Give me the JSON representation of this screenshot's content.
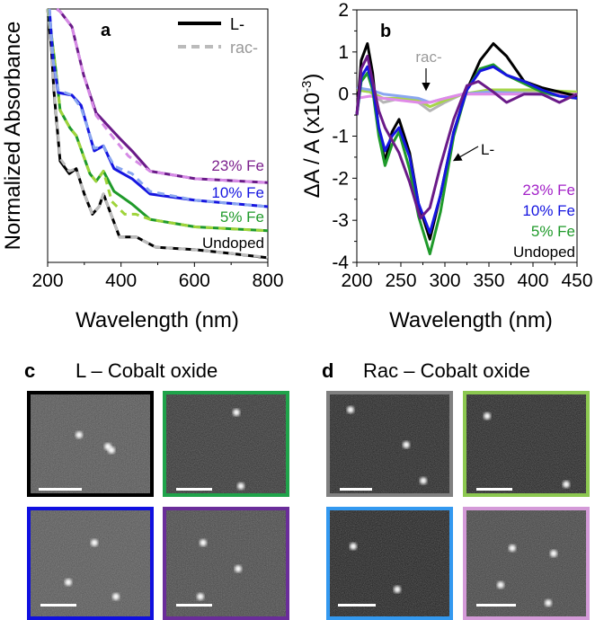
{
  "chart_data": [
    {
      "panel": "a",
      "type": "line",
      "xlabel": "Wavelength (nm)",
      "ylabel": "Normalized Absorbance",
      "xlim": [
        200,
        800
      ],
      "ylim": [
        0,
        1
      ],
      "xticks": [
        "200",
        "400",
        "600",
        "800"
      ],
      "yticks": [],
      "grid": false,
      "legend": {
        "placement": "top-right",
        "entries": [
          {
            "label": "L-",
            "style": "solid",
            "color": "#000000"
          },
          {
            "label": "rac-",
            "style": "dashed",
            "color": "#bbbbbb"
          }
        ]
      },
      "series_labels": [
        {
          "text": "23% Fe",
          "color": "#7b1f8c"
        },
        {
          "text": "10% Fe",
          "color": "#1515e0"
        },
        {
          "text": "5% Fe",
          "color": "#1f9a2a"
        },
        {
          "text": "Undoped",
          "color": "#000000"
        }
      ],
      "series": [
        {
          "group": "Undoped",
          "kind": "L-",
          "style": "solid",
          "color": "#000000",
          "x": [
            200,
            210,
            217,
            234,
            259,
            278,
            300,
            322,
            340,
            352,
            370,
            396,
            420,
            442,
            494,
            602,
            700,
            800
          ],
          "y": [
            1.0,
            0.85,
            0.68,
            0.4,
            0.35,
            0.37,
            0.27,
            0.19,
            0.22,
            0.27,
            0.2,
            0.1,
            0.1,
            0.1,
            0.06,
            0.05,
            0.035,
            0.018
          ]
        },
        {
          "group": "Undoped",
          "kind": "rac-",
          "style": "dashed",
          "color": "#bdbdbd",
          "x": [
            200,
            210,
            217,
            234,
            259,
            278,
            300,
            322,
            340,
            352,
            370,
            396,
            420,
            442,
            494,
            602,
            700,
            800
          ],
          "y": [
            1.0,
            0.86,
            0.69,
            0.41,
            0.36,
            0.37,
            0.27,
            0.19,
            0.22,
            0.27,
            0.2,
            0.1,
            0.1,
            0.1,
            0.06,
            0.05,
            0.035,
            0.02
          ]
        },
        {
          "group": "5% Fe",
          "kind": "L-",
          "style": "solid",
          "color": "#1f9a2a",
          "x": [
            203,
            210,
            222,
            234,
            261,
            278,
            315,
            332,
            352,
            381,
            430,
            479,
            602,
            800
          ],
          "y": [
            1.0,
            0.9,
            0.76,
            0.6,
            0.53,
            0.5,
            0.35,
            0.32,
            0.36,
            0.28,
            0.23,
            0.17,
            0.14,
            0.125
          ]
        },
        {
          "group": "5% Fe",
          "kind": "rac-",
          "style": "dashed",
          "color": "#9fd43a",
          "x": [
            203,
            210,
            222,
            234,
            261,
            278,
            315,
            332,
            352,
            375,
            410,
            440,
            479,
            602,
            800
          ],
          "y": [
            1.0,
            0.9,
            0.76,
            0.6,
            0.53,
            0.5,
            0.35,
            0.32,
            0.36,
            0.24,
            0.19,
            0.19,
            0.17,
            0.14,
            0.125
          ]
        },
        {
          "group": "10% Fe",
          "kind": "L-",
          "style": "solid",
          "color": "#1515e0",
          "x": [
            205,
            215,
            229,
            266,
            291,
            327,
            352,
            381,
            430,
            479,
            602,
            800
          ],
          "y": [
            1.0,
            0.8,
            0.67,
            0.66,
            0.62,
            0.44,
            0.46,
            0.37,
            0.33,
            0.27,
            0.245,
            0.22
          ]
        },
        {
          "group": "10% Fe",
          "kind": "rac-",
          "style": "dashed",
          "color": "#8aa6f0",
          "x": [
            205,
            215,
            229,
            266,
            291,
            327,
            352,
            381,
            430,
            479,
            602,
            800
          ],
          "y": [
            1.0,
            0.8,
            0.68,
            0.66,
            0.61,
            0.45,
            0.46,
            0.38,
            0.35,
            0.28,
            0.245,
            0.22
          ]
        },
        {
          "group": "23% Fe",
          "kind": "L-",
          "style": "solid",
          "color": "#6a1a88",
          "x": [
            225,
            234,
            266,
            298,
            332,
            396,
            430,
            479,
            602,
            800
          ],
          "y": [
            1.0,
            0.99,
            0.93,
            0.74,
            0.59,
            0.49,
            0.44,
            0.36,
            0.33,
            0.315
          ]
        },
        {
          "group": "23% Fe",
          "kind": "rac-",
          "style": "dashed",
          "color": "#d68ae6",
          "x": [
            225,
            234,
            266,
            298,
            332,
            380,
            420,
            479,
            602,
            800
          ],
          "y": [
            1.0,
            0.99,
            0.93,
            0.74,
            0.58,
            0.49,
            0.42,
            0.36,
            0.33,
            0.315
          ]
        }
      ]
    },
    {
      "panel": "b",
      "type": "line",
      "xlabel": "Wavelength (nm)",
      "ylabel": "ΔA / A (x10",
      "ylabel_sup": "-3",
      "ylabel_end": ")",
      "xlim": [
        200,
        450
      ],
      "ylim": [
        -4,
        2
      ],
      "xticks": [
        "200",
        "250",
        "300",
        "350",
        "400",
        "450"
      ],
      "yticks": [
        "2",
        "1",
        "0",
        "-1",
        "-2",
        "-3",
        "-4"
      ],
      "grid": false,
      "legend": {
        "placement": "bottom-right",
        "entries": [
          {
            "label": "23% Fe",
            "color": "#a322c8"
          },
          {
            "label": "10% Fe",
            "color": "#1515e0"
          },
          {
            "label": "5% Fe",
            "color": "#1f9a2a"
          },
          {
            "label": "Undoped",
            "color": "#000000"
          }
        ]
      },
      "annotations": [
        {
          "text": "rac-",
          "color": "#999999"
        },
        {
          "text": "L-",
          "color": "#000000"
        }
      ],
      "series": [
        {
          "group": "Undoped",
          "kind": "rac-",
          "color": "#b5b5b5",
          "x": [
            200,
            215,
            230,
            250,
            270,
            283,
            300,
            320,
            350,
            400,
            450
          ],
          "y": [
            0.1,
            0.05,
            -0.2,
            -0.1,
            -0.2,
            -0.4,
            -0.2,
            0.0,
            0.05,
            0.05,
            0.0
          ]
        },
        {
          "group": "5% Fe",
          "kind": "rac-",
          "color": "#a6d64a",
          "x": [
            200,
            215,
            230,
            250,
            270,
            283,
            300,
            320,
            350,
            400,
            450
          ],
          "y": [
            0.1,
            0.05,
            -0.1,
            -0.1,
            -0.15,
            -0.3,
            -0.15,
            0.0,
            0.1,
            0.1,
            0.05
          ]
        },
        {
          "group": "10% Fe",
          "kind": "rac-",
          "color": "#8aa6f0",
          "x": [
            200,
            215,
            230,
            250,
            270,
            283,
            300,
            320,
            350,
            400,
            450
          ],
          "y": [
            0.15,
            0.1,
            0.0,
            -0.05,
            -0.1,
            -0.2,
            -0.1,
            0.0,
            0.05,
            0.0,
            -0.05
          ]
        },
        {
          "group": "23% Fe",
          "kind": "rac-",
          "color": "#e08ae8",
          "x": [
            200,
            215,
            230,
            250,
            270,
            283,
            300,
            320,
            350,
            400,
            450
          ],
          "y": [
            -0.1,
            -0.05,
            -0.1,
            -0.15,
            -0.2,
            -0.2,
            -0.1,
            0.0,
            0.0,
            0.0,
            0.0
          ]
        },
        {
          "group": "Undoped",
          "kind": "L-",
          "color": "#000000",
          "x": [
            200,
            205,
            212,
            218,
            225,
            232,
            240,
            248,
            260,
            270,
            283,
            295,
            310,
            325,
            340,
            355,
            370,
            390,
            410,
            430,
            450
          ],
          "y": [
            -0.5,
            0.8,
            1.2,
            0.5,
            -0.9,
            -1.6,
            -0.9,
            -0.6,
            -1.4,
            -2.6,
            -3.45,
            -2.4,
            -0.9,
            0.1,
            0.8,
            1.2,
            0.9,
            0.3,
            0.15,
            0.05,
            -0.05
          ]
        },
        {
          "group": "5% Fe",
          "kind": "L-",
          "color": "#1f9a2a",
          "x": [
            200,
            205,
            212,
            218,
            225,
            232,
            240,
            248,
            260,
            270,
            283,
            295,
            310,
            325,
            340,
            355,
            370,
            390,
            410,
            430,
            450
          ],
          "y": [
            -0.5,
            0.3,
            0.5,
            0.1,
            -1.0,
            -1.7,
            -1.2,
            -0.9,
            -1.8,
            -2.9,
            -3.8,
            -2.8,
            -1.0,
            0.1,
            0.6,
            0.7,
            0.45,
            0.25,
            0.05,
            -0.05,
            -0.1
          ]
        },
        {
          "group": "10% Fe",
          "kind": "L-",
          "color": "#1515e0",
          "x": [
            200,
            205,
            212,
            218,
            225,
            232,
            240,
            248,
            260,
            270,
            283,
            295,
            310,
            325,
            340,
            355,
            370,
            390,
            410,
            430,
            450
          ],
          "y": [
            -0.5,
            0.4,
            0.65,
            0.2,
            -0.8,
            -1.35,
            -1.0,
            -0.8,
            -1.5,
            -2.6,
            -3.3,
            -2.4,
            -0.9,
            0.1,
            0.55,
            0.65,
            0.45,
            0.3,
            0.1,
            -0.05,
            -0.1
          ]
        },
        {
          "group": "23% Fe",
          "kind": "L-",
          "color": "#6a1a88",
          "x": [
            200,
            205,
            212,
            218,
            225,
            232,
            240,
            248,
            260,
            272,
            283,
            295,
            310,
            325,
            338,
            355,
            370,
            390,
            410,
            430,
            450
          ],
          "y": [
            -0.5,
            0.6,
            0.9,
            0.3,
            -0.4,
            -0.8,
            -1.1,
            -1.4,
            -2.1,
            -2.95,
            -2.7,
            -1.7,
            -0.6,
            0.2,
            0.3,
            0.05,
            -0.2,
            0.0,
            0.0,
            -0.2,
            0.0
          ]
        }
      ]
    }
  ],
  "panels": {
    "c": {
      "label": "c",
      "title": "L – Cobalt oxide",
      "images": [
        {
          "border": "#000000"
        },
        {
          "border": "#1fa34a"
        },
        {
          "border": "#1010e0"
        },
        {
          "border": "#6a2d9a"
        }
      ]
    },
    "d": {
      "label": "d",
      "title": "Rac – Cobalt oxide",
      "images": [
        {
          "border": "#808080"
        },
        {
          "border": "#8cc850"
        },
        {
          "border": "#3399f0"
        },
        {
          "border": "#d49ad8"
        }
      ]
    }
  }
}
